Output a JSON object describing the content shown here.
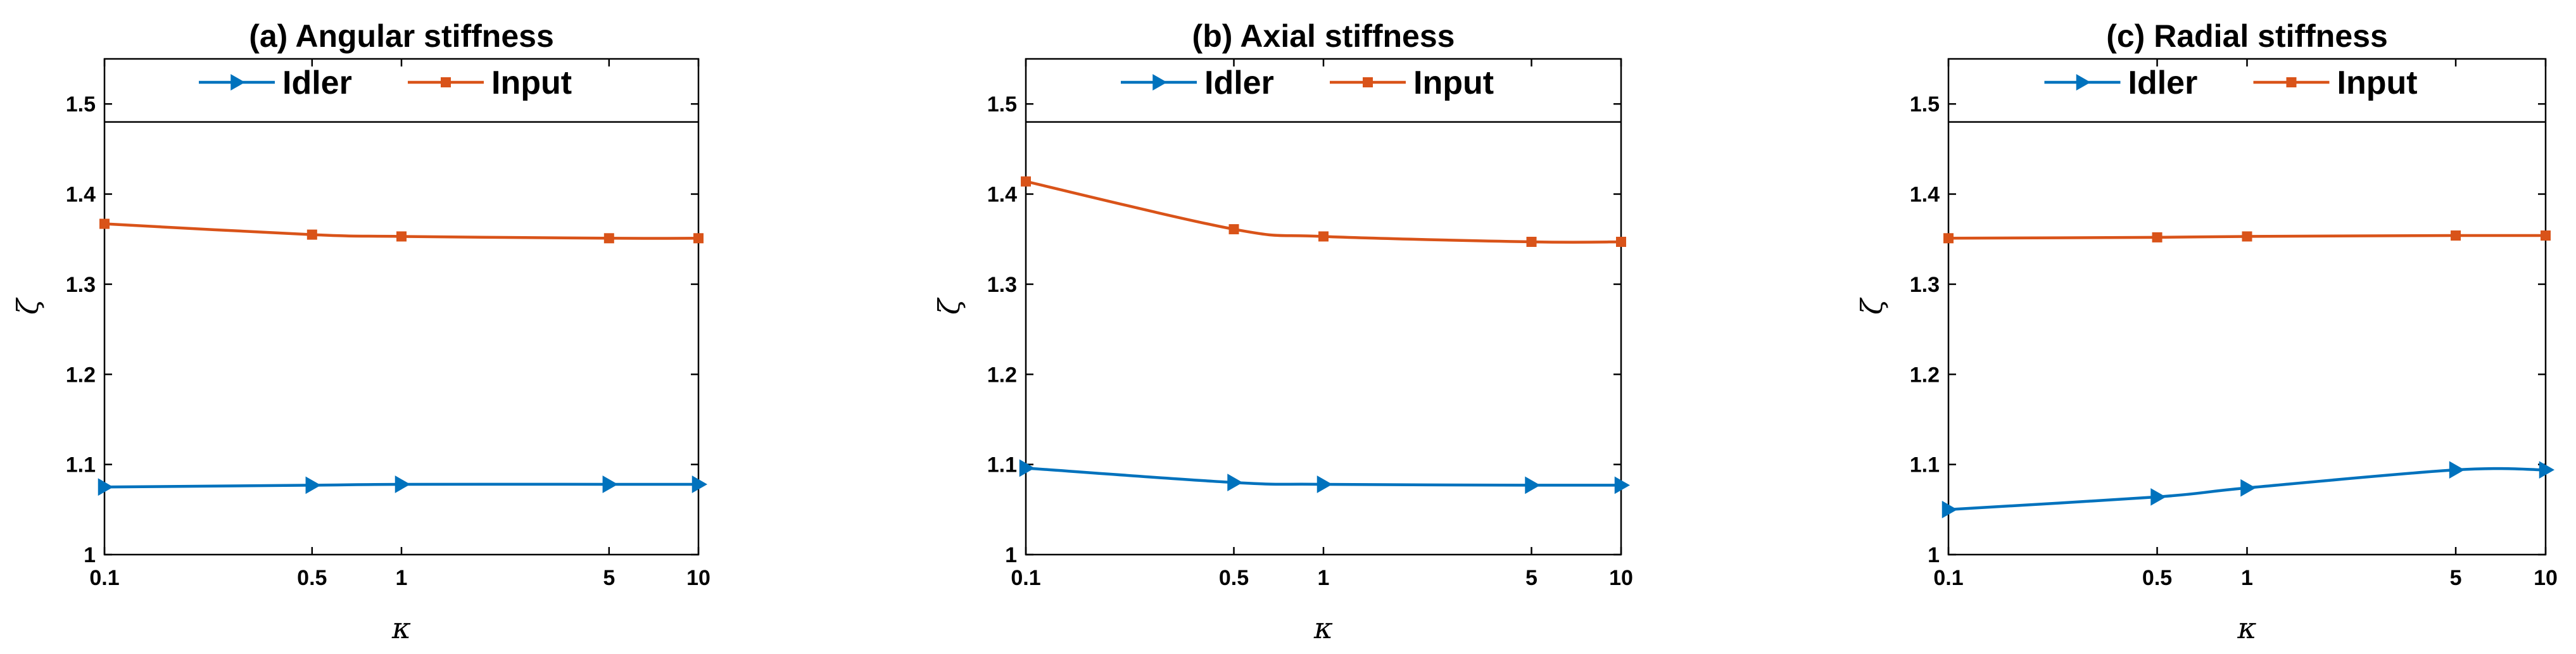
{
  "colors": {
    "idler": "#0072BD",
    "input": "#D95319",
    "axis": "#000000",
    "refline": "#000000"
  },
  "legend": [
    "Idler",
    "Input"
  ],
  "chart_data": [
    {
      "type": "line",
      "title": "(a) Angular stiffness",
      "xlabel": "κ",
      "ylabel": "ζ",
      "xscale": "log",
      "xlim": [
        0.1,
        10
      ],
      "ylim": [
        1,
        1.55
      ],
      "xticks": [
        0.1,
        0.5,
        1,
        5,
        10
      ],
      "xtick_labels": [
        "0.1",
        "0.5",
        "1",
        "5",
        "10"
      ],
      "yticks": [
        1,
        1.1,
        1.2,
        1.3,
        1.4,
        1.5
      ],
      "ytick_labels": [
        "1",
        "1.1",
        "1.2",
        "1.3",
        "1.4",
        "1.5"
      ],
      "reference_line": 1.48,
      "legend_position": "top-center",
      "series": [
        {
          "name": "Idler",
          "marker": "triangle-right",
          "x": [
            0.1,
            0.5,
            1,
            5,
            10
          ],
          "y": [
            1.075,
            1.077,
            1.078,
            1.078,
            1.078
          ]
        },
        {
          "name": "Input",
          "marker": "square",
          "x": [
            0.1,
            0.5,
            1,
            5,
            10
          ],
          "y": [
            1.367,
            1.355,
            1.353,
            1.351,
            1.351
          ]
        }
      ]
    },
    {
      "type": "line",
      "title": "(b) Axial stiffness",
      "xlabel": "κ",
      "ylabel": "ζ",
      "xscale": "log",
      "xlim": [
        0.1,
        10
      ],
      "ylim": [
        1,
        1.55
      ],
      "xticks": [
        0.1,
        0.5,
        1,
        5,
        10
      ],
      "xtick_labels": [
        "0.1",
        "0.5",
        "1",
        "5",
        "10"
      ],
      "yticks": [
        1,
        1.1,
        1.2,
        1.3,
        1.4,
        1.5
      ],
      "ytick_labels": [
        "1",
        "1.1",
        "1.2",
        "1.3",
        "1.4",
        "1.5"
      ],
      "reference_line": 1.48,
      "legend_position": "top-center",
      "series": [
        {
          "name": "Idler",
          "marker": "triangle-right",
          "x": [
            0.1,
            0.5,
            1,
            5,
            10
          ],
          "y": [
            1.096,
            1.08,
            1.078,
            1.077,
            1.077
          ]
        },
        {
          "name": "Input",
          "marker": "square",
          "x": [
            0.1,
            0.5,
            1,
            5,
            10
          ],
          "y": [
            1.414,
            1.361,
            1.353,
            1.347,
            1.347
          ]
        }
      ]
    },
    {
      "type": "line",
      "title": "(c) Radial stiffness",
      "xlabel": "κ",
      "ylabel": "ζ",
      "xscale": "log",
      "xlim": [
        0.1,
        10
      ],
      "ylim": [
        1,
        1.55
      ],
      "xticks": [
        0.1,
        0.5,
        1,
        5,
        10
      ],
      "xtick_labels": [
        "0.1",
        "0.5",
        "1",
        "5",
        "10"
      ],
      "yticks": [
        1,
        1.1,
        1.2,
        1.3,
        1.4,
        1.5
      ],
      "ytick_labels": [
        "1",
        "1.1",
        "1.2",
        "1.3",
        "1.4",
        "1.5"
      ],
      "reference_line": 1.48,
      "legend_position": "top-center",
      "series": [
        {
          "name": "Idler",
          "marker": "triangle-right",
          "x": [
            0.1,
            0.5,
            1,
            5,
            10
          ],
          "y": [
            1.05,
            1.064,
            1.074,
            1.094,
            1.094
          ]
        },
        {
          "name": "Input",
          "marker": "square",
          "x": [
            0.1,
            0.5,
            1,
            5,
            10
          ],
          "y": [
            1.351,
            1.352,
            1.353,
            1.354,
            1.354
          ]
        }
      ]
    }
  ]
}
